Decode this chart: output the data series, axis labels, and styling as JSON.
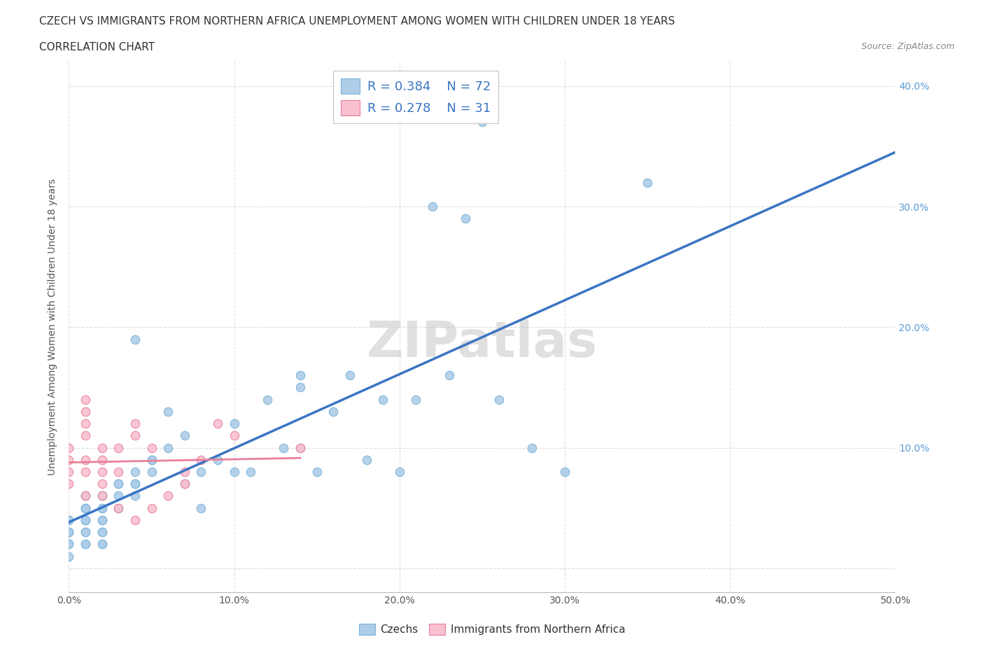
{
  "title_line1": "CZECH VS IMMIGRANTS FROM NORTHERN AFRICA UNEMPLOYMENT AMONG WOMEN WITH CHILDREN UNDER 18 YEARS",
  "title_line2": "CORRELATION CHART",
  "source_text": "Source: ZipAtlas.com",
  "ylabel": "Unemployment Among Women with Children Under 18 years",
  "xlim": [
    0.0,
    0.5
  ],
  "ylim": [
    -0.02,
    0.42
  ],
  "xticks": [
    0.0,
    0.1,
    0.2,
    0.3,
    0.4,
    0.5
  ],
  "yticks": [
    0.0,
    0.1,
    0.2,
    0.3,
    0.4
  ],
  "xtick_labels": [
    "0.0%",
    "10.0%",
    "20.0%",
    "30.0%",
    "40.0%",
    "50.0%"
  ],
  "ytick_labels_right": [
    "",
    "10.0%",
    "20.0%",
    "30.0%",
    "40.0%"
  ],
  "background_color": "#ffffff",
  "grid_color": "#dddddd",
  "czechs_color": "#aecde8",
  "czechs_edge_color": "#7ab3d9",
  "immigrants_color": "#f9c0d0",
  "immigrants_edge_color": "#e8809a",
  "czechs_line_color": "#3a75c4",
  "immigrants_line_color": "#e8809a",
  "watermark": "ZIPatlas",
  "czechs_x": [
    0.0,
    0.0,
    0.0,
    0.0,
    0.0,
    0.0,
    0.0,
    0.0,
    0.01,
    0.01,
    0.01,
    0.01,
    0.01,
    0.01,
    0.01,
    0.01,
    0.01,
    0.01,
    0.01,
    0.01,
    0.02,
    0.02,
    0.02,
    0.02,
    0.02,
    0.02,
    0.02,
    0.02,
    0.02,
    0.02,
    0.03,
    0.03,
    0.03,
    0.03,
    0.04,
    0.04,
    0.04,
    0.04,
    0.04,
    0.05,
    0.05,
    0.05,
    0.06,
    0.06,
    0.07,
    0.07,
    0.08,
    0.08,
    0.09,
    0.1,
    0.1,
    0.11,
    0.12,
    0.13,
    0.14,
    0.14,
    0.14,
    0.15,
    0.16,
    0.17,
    0.18,
    0.19,
    0.2,
    0.21,
    0.22,
    0.23,
    0.24,
    0.25,
    0.26,
    0.28,
    0.3,
    0.35
  ],
  "czechs_y": [
    0.04,
    0.04,
    0.03,
    0.03,
    0.03,
    0.02,
    0.02,
    0.01,
    0.06,
    0.06,
    0.05,
    0.05,
    0.05,
    0.04,
    0.04,
    0.04,
    0.03,
    0.03,
    0.02,
    0.02,
    0.06,
    0.06,
    0.05,
    0.05,
    0.04,
    0.04,
    0.03,
    0.03,
    0.02,
    0.02,
    0.07,
    0.07,
    0.05,
    0.06,
    0.19,
    0.08,
    0.07,
    0.06,
    0.07,
    0.08,
    0.09,
    0.09,
    0.1,
    0.13,
    0.11,
    0.07,
    0.08,
    0.05,
    0.09,
    0.08,
    0.12,
    0.08,
    0.14,
    0.1,
    0.1,
    0.16,
    0.15,
    0.08,
    0.13,
    0.16,
    0.09,
    0.14,
    0.08,
    0.14,
    0.3,
    0.16,
    0.29,
    0.37,
    0.14,
    0.1,
    0.08,
    0.32
  ],
  "immigrants_x": [
    0.0,
    0.0,
    0.0,
    0.0,
    0.01,
    0.01,
    0.01,
    0.01,
    0.01,
    0.01,
    0.01,
    0.02,
    0.02,
    0.02,
    0.02,
    0.02,
    0.03,
    0.03,
    0.03,
    0.04,
    0.04,
    0.04,
    0.05,
    0.05,
    0.06,
    0.07,
    0.07,
    0.08,
    0.09,
    0.1,
    0.14
  ],
  "immigrants_y": [
    0.1,
    0.09,
    0.08,
    0.07,
    0.14,
    0.13,
    0.12,
    0.11,
    0.09,
    0.08,
    0.06,
    0.1,
    0.09,
    0.08,
    0.07,
    0.06,
    0.1,
    0.08,
    0.05,
    0.12,
    0.11,
    0.04,
    0.1,
    0.05,
    0.06,
    0.08,
    0.07,
    0.09,
    0.12,
    0.11,
    0.1
  ]
}
